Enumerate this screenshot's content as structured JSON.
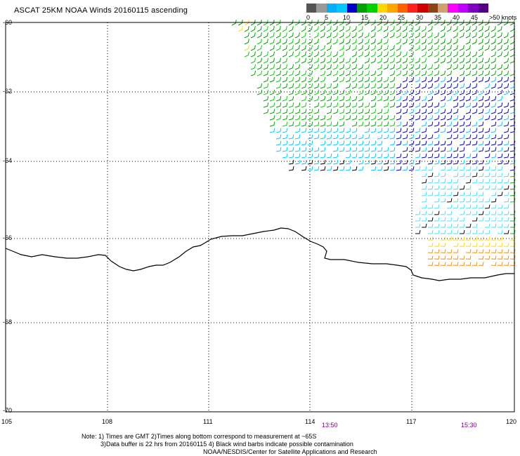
{
  "title": "ASCAT 25KM NOAA Winds 20160115 ascending",
  "legend": {
    "colors": [
      "#555555",
      "#999999",
      "#00b0ff",
      "#00c8ff",
      "#0000c8",
      "#00a000",
      "#00d000",
      "#ffd700",
      "#ffa500",
      "#ff6000",
      "#ff2020",
      "#d00000",
      "#8b4513",
      "#d2a070",
      "#ff00ff",
      "#c000ff",
      "#8000c0",
      "#500080"
    ],
    "labels": [
      "0",
      "5",
      "10",
      "15",
      "20",
      "25",
      "30",
      "35",
      "40",
      "45",
      ">50 knots"
    ]
  },
  "axes": {
    "y_labels": [
      "-60",
      "-62",
      "-64",
      "-66",
      "-68",
      "-70"
    ],
    "x_labels": [
      "105",
      "108",
      "111",
      "114",
      "117",
      "120"
    ],
    "lat_range": [
      -70,
      -60
    ],
    "lon_range": [
      105,
      120
    ]
  },
  "times": [
    "13:50",
    "15:30"
  ],
  "footer": {
    "line1": "Note: 1) Times are GMT 2)Times along bottom correspond to measurement at ~65S",
    "line2": "3)Data buffer is 22 hrs from 20160115 4) Black wind barbs indicate possible contamination",
    "line3": "NOAA/NESDIS/Center for Satellite Applications and Research"
  },
  "colors": {
    "coastline": "#000000",
    "grid": "#000000"
  }
}
